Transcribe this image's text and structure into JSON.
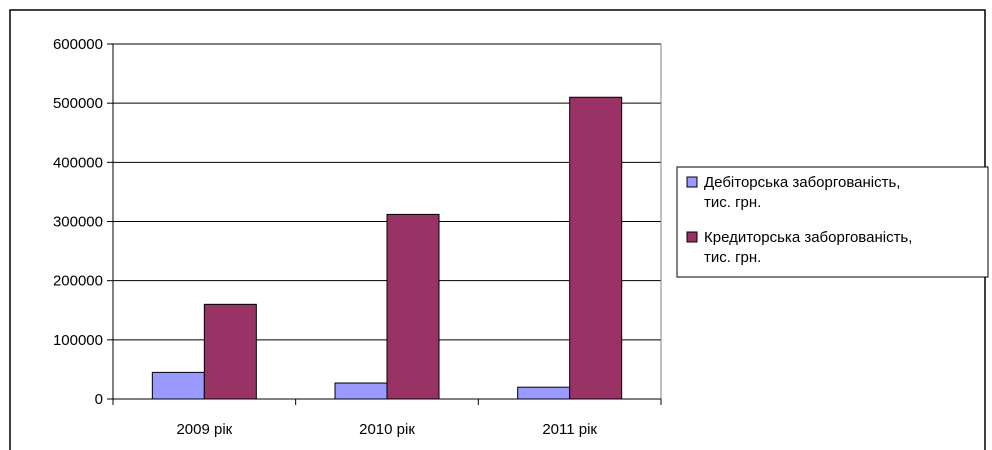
{
  "chart_data": {
    "type": "bar",
    "title": "",
    "xlabel": "",
    "ylabel": "",
    "categories": [
      "2009 рік",
      "2010 рік",
      "2011 рік"
    ],
    "series": [
      {
        "name_lines": [
          "Дебіторська заборгованість,",
          "тис. грн."
        ],
        "values": [
          45000,
          27000,
          20000
        ],
        "color": "#9999ff"
      },
      {
        "name_lines": [
          "Кредиторська заборгованість,",
          "тис. грн."
        ],
        "values": [
          160000,
          312000,
          510000
        ],
        "color": "#993366"
      }
    ],
    "ylim": [
      0,
      600000
    ],
    "y_ticks": [
      "0",
      "100000",
      "200000",
      "300000",
      "400000",
      "500000",
      "600000"
    ],
    "grid": true,
    "legend_position": "right"
  }
}
